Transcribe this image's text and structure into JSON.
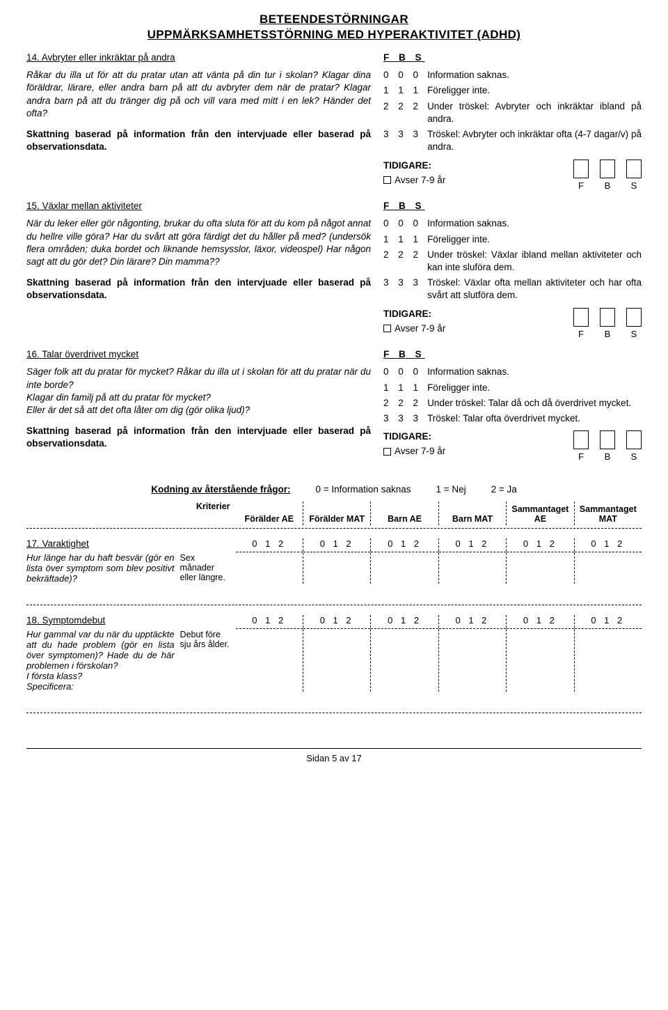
{
  "header": {
    "title1": "BETEENDESTÖRNINGAR",
    "title2": "UPPMÄRKSAMHETSSTÖRNING MED HYPERAKTIVITET (ADHD)"
  },
  "fbs_header": "F B S",
  "tidigare_label": "TIDIGARE:",
  "avser_label": "Avser 7-9 år",
  "fbs_letters": [
    "F",
    "B",
    "S"
  ],
  "q14": {
    "title": "14. Avbryter eller inkräktar på andra",
    "prompt": "Råkar du illa ut för att du pratar utan att vänta på din tur i skolan? Klagar dina föräldrar, lärare, eller andra barn på att du avbryter dem när de pratar? Klagar andra barn på att du tränger dig på och vill vara med mitt i en lek? Händer det ofta?",
    "note": "Skattning baserad på information från den intervjuade eller baserad på observationsdata.",
    "scale": [
      {
        "c": "0 0 0",
        "t": "Information saknas."
      },
      {
        "c": "1 1 1",
        "t": "Föreligger inte."
      },
      {
        "c": "2 2 2",
        "t": "Under tröskel: Avbryter och inkräktar ibland på andra."
      },
      {
        "c": "3 3 3",
        "t": "Tröskel: Avbryter och inkräktar ofta (4-7 dagar/v) på andra."
      }
    ]
  },
  "q15": {
    "title": "15. Växlar mellan aktiviteter",
    "prompt": "När du leker eller gör någonting, brukar du ofta sluta för att du kom på något annat du hellre ville göra? Har du svårt att göra färdigt det du håller på med? (undersök flera områden; duka bordet och liknande hemsysslor, läxor, videospel) Har någon sagt att du gör det? Din lärare? Din mamma??",
    "note": "Skattning baserad på information från den intervjuade eller baserad på observationsdata.",
    "scale": [
      {
        "c": "0 0 0",
        "t": "Information saknas."
      },
      {
        "c": "1 1 1",
        "t": "Föreligger inte."
      },
      {
        "c": "2 2 2",
        "t": "Under tröskel: Växlar ibland mellan aktiviteter och kan inte sluföra dem."
      },
      {
        "c": "3 3 3",
        "t": "Tröskel: Växlar ofta mellan aktiviteter och har ofta svårt att slutföra dem."
      }
    ]
  },
  "q16": {
    "title": "16. Talar överdrivet mycket",
    "prompt_l1": "Säger folk att du pratar för mycket? Råkar du illa ut i skolan för att du pratar när du inte borde?",
    "prompt_l2": "Klagar din familj på att du pratar för mycket?",
    "prompt_l3": "Eller är det så att det ofta låter om dig (gör olika ljud)?",
    "note": "Skattning baserad på information från den intervjuade eller baserad på observationsdata.",
    "scale": [
      {
        "c": "0 0 0",
        "t": "Information saknas."
      },
      {
        "c": "1 1 1",
        "t": "Föreligger inte."
      },
      {
        "c": "2 2 2",
        "t": "Under tröskel: Talar då och då överdrivet mycket."
      },
      {
        "c": "3 3 3",
        "t": "Tröskel: Talar ofta överdrivet mycket."
      }
    ]
  },
  "coding": {
    "lead": "Kodning av återstående frågor:",
    "k0": "0 = Information saknas",
    "k1": "1 = Nej",
    "k2": "2 = Ja"
  },
  "grid": {
    "headers": {
      "krit": "Kriterier",
      "c1": "Förälder AE",
      "c2": "Förälder MAT",
      "c3": "Barn AE",
      "c4": "Barn MAT",
      "c5": "Sammantaget AE",
      "c6": "Sammantaget MAT"
    },
    "vals": "0 1 2"
  },
  "q17": {
    "title": "17. Varaktighet",
    "q": "Hur länge har du haft besvär (gör en lista över symptom som blev positivt bekräftade)?",
    "crit": "Sex månader eller längre."
  },
  "q18": {
    "title": "18. Symptomdebut",
    "q": "Hur gammal var du när du upptäckte att du hade problem (gör en lista över symptomen)? Hade du de här problemen i förskolan?\nI första klass?\nSpecificera:",
    "crit": "Debut före sju års ålder."
  },
  "footer": "Sidan 5 av 17"
}
